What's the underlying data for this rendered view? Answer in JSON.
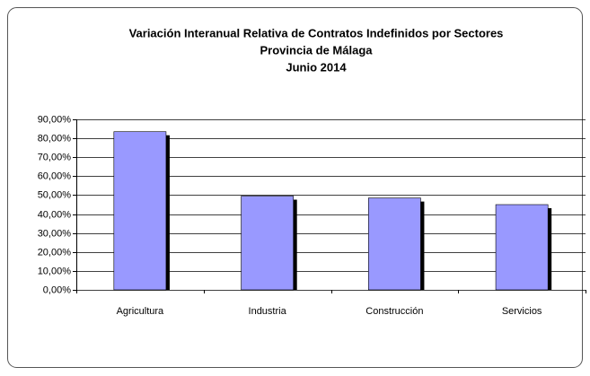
{
  "chart_data": {
    "type": "bar",
    "title": [
      "Variación Interanual Relativa de Contratos Indefinidos  por Sectores",
      "Provincia de Málaga",
      "Junio 2014"
    ],
    "categories": [
      "Agricultura",
      "Industria",
      "Construcción",
      "Servicios"
    ],
    "values": [
      83.5,
      49.5,
      48.5,
      45
    ],
    "color": "#9999ff",
    "ylim": [
      0,
      90
    ],
    "yticks": [
      {
        "value": 0,
        "label": "0,00%"
      },
      {
        "value": 10,
        "label": "10,00%"
      },
      {
        "value": 20,
        "label": "20,00%"
      },
      {
        "value": 30,
        "label": "30,00%"
      },
      {
        "value": 40,
        "label": "40,00%"
      },
      {
        "value": 50,
        "label": "50,00%"
      },
      {
        "value": 60,
        "label": "60,00%"
      },
      {
        "value": 70,
        "label": "70,00%"
      },
      {
        "value": 80,
        "label": "80,00%"
      },
      {
        "value": 90,
        "label": "90,00%"
      }
    ],
    "grid": true
  }
}
